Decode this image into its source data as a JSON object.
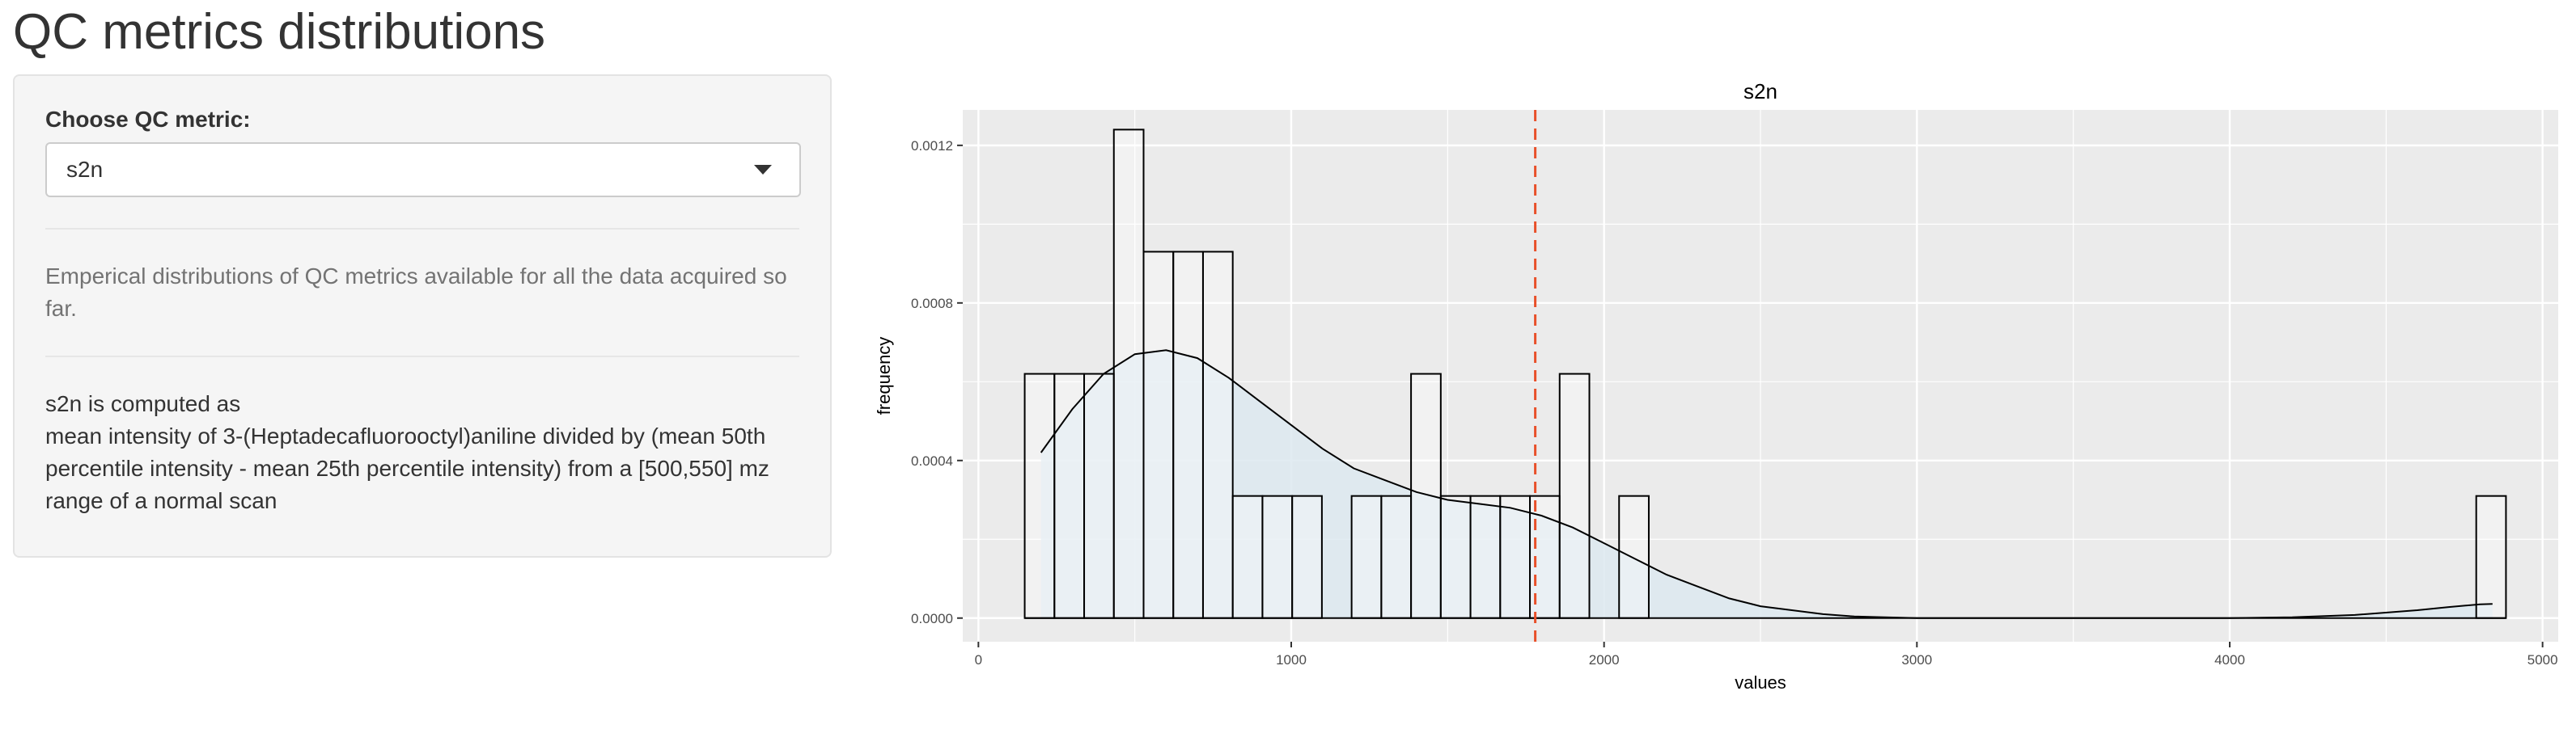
{
  "page": {
    "title": "QC metrics distributions"
  },
  "sidebar": {
    "select_label": "Choose QC metric:",
    "select_value": "s2n",
    "description": "Emperical distributions of QC metrics available for all the data acquired so far.",
    "formula_lines": [
      "s2n is computed as",
      "mean intensity of 3-(Heptadecafluorooctyl)aniline divided by (mean 50th",
      "percentile intensity - mean 25th percentile intensity) from a [500,550] mz",
      "range of a normal scan"
    ]
  },
  "colors": {
    "panel_bg": "#ebebeb",
    "grid": "#ffffff",
    "density_fill": "#dde9f0",
    "bar_fill": "#ffffff",
    "bar_stroke": "#000000",
    "vline": "#e8502a"
  },
  "chart_data": {
    "type": "bar",
    "title": "s2n",
    "xlabel": "values",
    "ylabel": "frequency",
    "xlim": [
      -50,
      5050
    ],
    "ylim": [
      -6e-05,
      0.00129
    ],
    "x_ticks": [
      0,
      1000,
      2000,
      3000,
      4000,
      5000
    ],
    "x_tick_labels": [
      "0",
      "1000",
      "2000",
      "3000",
      "4000",
      "5000"
    ],
    "y_ticks": [
      0,
      0.0004,
      0.0008,
      0.0012
    ],
    "y_tick_labels": [
      "0.0000",
      "0.0004",
      "0.0008",
      "0.0012"
    ],
    "grid": true,
    "legend": "none",
    "bins": [
      {
        "x0": 148,
        "x1": 243,
        "y": 0.00062
      },
      {
        "x0": 243,
        "x1": 338,
        "y": 0.00062
      },
      {
        "x0": 338,
        "x1": 433,
        "y": 0.00062
      },
      {
        "x0": 433,
        "x1": 528,
        "y": 0.00124
      },
      {
        "x0": 528,
        "x1": 623,
        "y": 0.00093
      },
      {
        "x0": 623,
        "x1": 718,
        "y": 0.00093
      },
      {
        "x0": 718,
        "x1": 813,
        "y": 0.00093
      },
      {
        "x0": 813,
        "x1": 908,
        "y": 0.00031
      },
      {
        "x0": 908,
        "x1": 1003,
        "y": 0.00031
      },
      {
        "x0": 1003,
        "x1": 1098,
        "y": 0.00031
      },
      {
        "x0": 1193,
        "x1": 1288,
        "y": 0.00031
      },
      {
        "x0": 1288,
        "x1": 1383,
        "y": 0.00031
      },
      {
        "x0": 1383,
        "x1": 1478,
        "y": 0.00062
      },
      {
        "x0": 1478,
        "x1": 1573,
        "y": 0.00031
      },
      {
        "x0": 1573,
        "x1": 1668,
        "y": 0.00031
      },
      {
        "x0": 1668,
        "x1": 1763,
        "y": 0.00031
      },
      {
        "x0": 1763,
        "x1": 1858,
        "y": 0.00031
      },
      {
        "x0": 1858,
        "x1": 1953,
        "y": 0.00062
      },
      {
        "x0": 2048,
        "x1": 2143,
        "y": 0.00031
      },
      {
        "x0": 4788,
        "x1": 4883,
        "y": 0.00031
      }
    ],
    "density": [
      [
        200,
        0.00042
      ],
      [
        300,
        0.00053
      ],
      [
        400,
        0.00062
      ],
      [
        500,
        0.00067
      ],
      [
        600,
        0.00068
      ],
      [
        700,
        0.00066
      ],
      [
        800,
        0.00061
      ],
      [
        900,
        0.00055
      ],
      [
        1000,
        0.00049
      ],
      [
        1100,
        0.00043
      ],
      [
        1200,
        0.00038
      ],
      [
        1300,
        0.00035
      ],
      [
        1400,
        0.00032
      ],
      [
        1500,
        0.0003
      ],
      [
        1600,
        0.00029
      ],
      [
        1700,
        0.00028
      ],
      [
        1800,
        0.00026
      ],
      [
        1900,
        0.00023
      ],
      [
        2000,
        0.00019
      ],
      [
        2100,
        0.00015
      ],
      [
        2200,
        0.00011
      ],
      [
        2300,
        8e-05
      ],
      [
        2400,
        5e-05
      ],
      [
        2500,
        3e-05
      ],
      [
        2600,
        2e-05
      ],
      [
        2700,
        1e-05
      ],
      [
        2800,
        4e-06
      ],
      [
        3000,
        0.0
      ],
      [
        3500,
        0.0
      ],
      [
        4000,
        0.0
      ],
      [
        4200,
        2e-06
      ],
      [
        4400,
        8e-06
      ],
      [
        4600,
        2e-05
      ],
      [
        4700,
        2.8e-05
      ],
      [
        4800,
        3.5e-05
      ],
      [
        4840,
        3.6e-05
      ]
    ],
    "vline_x": 1780
  }
}
